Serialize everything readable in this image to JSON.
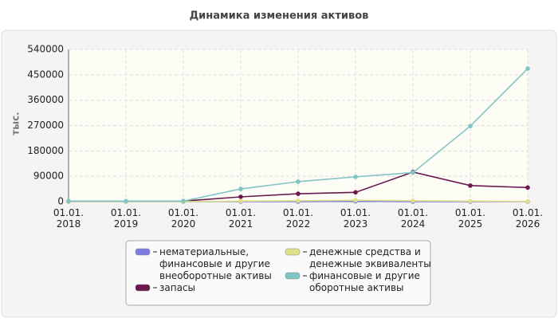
{
  "chart_data": {
    "type": "line",
    "title": "Динамика изменения активов",
    "y_label": "тыс.",
    "categories": [
      "01.01. 2018",
      "01.01. 2019",
      "01.01. 2020",
      "01.01. 2021",
      "01.01. 2022",
      "01.01. 2023",
      "01.01. 2024",
      "01.01. 2025",
      "01.01. 2026"
    ],
    "series": [
      {
        "name": "нематериальные, финансовые и другие внеоборотные активы",
        "color": "#7b7be0",
        "values": [
          0,
          0,
          0,
          0,
          0,
          1500,
          0,
          0,
          0
        ]
      },
      {
        "name": "запасы",
        "color": "#6b1a4e",
        "values": [
          1000,
          1000,
          2000,
          17000,
          28000,
          33000,
          105000,
          57000,
          50000
        ]
      },
      {
        "name": "денежные средства и денежные эквиваленты",
        "color": "#e0e08a",
        "values": [
          0,
          0,
          0,
          2000,
          3000,
          5000,
          3000,
          2000,
          1000
        ]
      },
      {
        "name": "финансовые и другие оборотные активы",
        "color": "#80c4c4",
        "values": [
          2000,
          2000,
          2000,
          45000,
          71000,
          88000,
          103000,
          268000,
          472000
        ]
      }
    ],
    "ylim": [
      0,
      540000
    ],
    "yticks": [
      0,
      90000,
      180000,
      270000,
      360000,
      450000,
      540000
    ],
    "grid": true
  }
}
